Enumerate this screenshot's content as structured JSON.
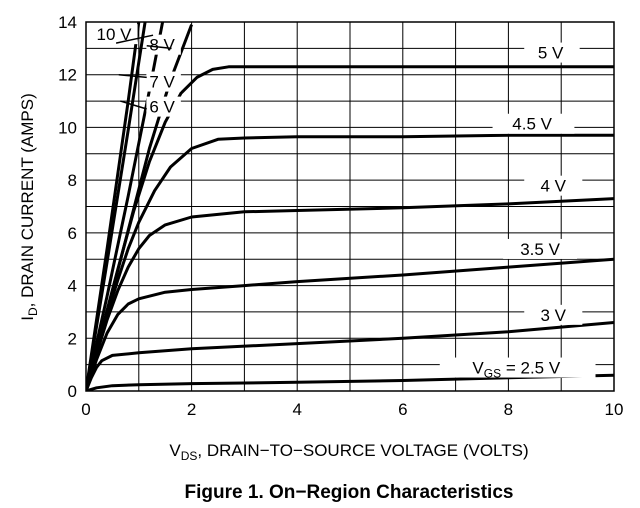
{
  "chart_data": {
    "type": "line",
    "title": "",
    "caption": "Figure 1. On−Region Characteristics",
    "xlabel": {
      "main": "V",
      "sub": "DS",
      "rest": ", DRAIN−TO−SOURCE VOLTAGE (VOLTS)"
    },
    "ylabel": {
      "main": "I",
      "sub": "D",
      "rest": ", DRAIN CURRENT (AMPS)"
    },
    "xlim": [
      0,
      10
    ],
    "ylim": [
      0,
      14
    ],
    "xticks": [
      0,
      2,
      4,
      6,
      8,
      10
    ],
    "yticks": [
      0,
      2,
      4,
      6,
      8,
      10,
      12,
      14
    ],
    "grid": true,
    "series": [
      {
        "name": "2.5 V",
        "label": {
          "prefix": "V",
          "sub": "GS",
          "text": " = 2.5 V"
        },
        "x": [
          0,
          0.2,
          0.5,
          1,
          2,
          4,
          6,
          8,
          10
        ],
        "y": [
          0,
          0.12,
          0.2,
          0.24,
          0.28,
          0.33,
          0.4,
          0.5,
          0.6
        ]
      },
      {
        "name": "3 V",
        "label": {
          "prefix": "",
          "sub": "",
          "text": "3 V"
        },
        "x": [
          0,
          0.1,
          0.2,
          0.3,
          0.5,
          1,
          2,
          4,
          6,
          8,
          10
        ],
        "y": [
          0,
          0.5,
          0.9,
          1.15,
          1.35,
          1.45,
          1.6,
          1.8,
          2.0,
          2.25,
          2.6
        ]
      },
      {
        "name": "3.5 V",
        "label": {
          "prefix": "",
          "sub": "",
          "text": "3.5 V"
        },
        "x": [
          0,
          0.2,
          0.4,
          0.6,
          0.8,
          1,
          1.5,
          2,
          3,
          4,
          6,
          8,
          10
        ],
        "y": [
          0,
          1.2,
          2.2,
          2.9,
          3.3,
          3.5,
          3.75,
          3.85,
          4.0,
          4.15,
          4.4,
          4.7,
          5.0
        ]
      },
      {
        "name": "4 V",
        "label": {
          "prefix": "",
          "sub": "",
          "text": "4 V"
        },
        "x": [
          0,
          0.2,
          0.4,
          0.6,
          0.8,
          1,
          1.2,
          1.5,
          2,
          3,
          4,
          6,
          8,
          10
        ],
        "y": [
          0,
          1.4,
          2.7,
          3.8,
          4.7,
          5.4,
          5.9,
          6.3,
          6.6,
          6.8,
          6.85,
          6.95,
          7.1,
          7.3
        ]
      },
      {
        "name": "4.5 V",
        "label": {
          "prefix": "",
          "sub": "",
          "text": "4.5 V"
        },
        "x": [
          0,
          0.2,
          0.4,
          0.6,
          0.8,
          1,
          1.3,
          1.6,
          2,
          2.5,
          3,
          4,
          6,
          8,
          10
        ],
        "y": [
          0,
          1.5,
          2.9,
          4.2,
          5.4,
          6.4,
          7.6,
          8.5,
          9.2,
          9.55,
          9.6,
          9.65,
          9.65,
          9.7,
          9.7
        ]
      },
      {
        "name": "5 V",
        "label": {
          "prefix": "",
          "sub": "",
          "text": "5 V"
        },
        "x": [
          0,
          0.3,
          0.6,
          0.9,
          1.2,
          1.5,
          1.8,
          2.1,
          2.4,
          2.7,
          3,
          4,
          6,
          8,
          10
        ],
        "y": [
          0,
          2.3,
          4.6,
          6.8,
          8.7,
          10.2,
          11.3,
          11.9,
          12.2,
          12.3,
          12.3,
          12.3,
          12.3,
          12.3,
          12.3
        ]
      },
      {
        "name": "6 V",
        "label": {
          "prefix": "",
          "sub": "",
          "text": "6 V"
        },
        "x": [
          0,
          0.4,
          0.8,
          1.2,
          1.6,
          2.0
        ],
        "y": [
          0,
          3.0,
          6.1,
          9.2,
          11.8,
          13.9
        ]
      },
      {
        "name": "7 V",
        "label": {
          "prefix": "",
          "sub": "",
          "text": "7 V"
        },
        "x": [
          0,
          0.4,
          0.8,
          1.2,
          1.45
        ],
        "y": [
          0,
          3.6,
          7.4,
          11.4,
          14.0
        ]
      },
      {
        "name": "8 V",
        "label": {
          "prefix": "",
          "sub": "",
          "text": "8 V"
        },
        "x": [
          0,
          0.4,
          0.8,
          1.12
        ],
        "y": [
          0,
          4.9,
          9.9,
          14.0
        ]
      },
      {
        "name": "10 V",
        "label": {
          "prefix": "",
          "sub": "",
          "text": "10 V"
        },
        "x": [
          0,
          0.4,
          0.8,
          1.0
        ],
        "y": [
          0,
          5.4,
          11.0,
          14.0
        ]
      }
    ]
  }
}
